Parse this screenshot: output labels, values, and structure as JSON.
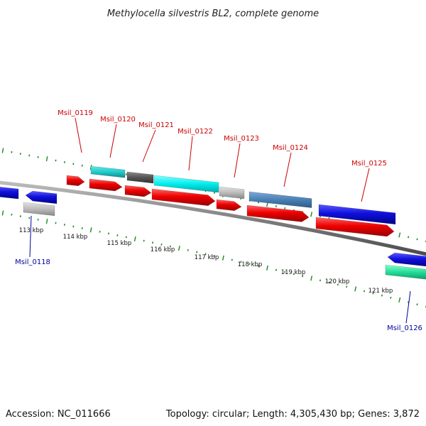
{
  "title": "Methylocella silvestris BL2, complete genome",
  "footer": {
    "accession": "Accession: NC_011666",
    "summary": "Topology: circular; Length: 4,305,430 bp; Genes: 3,872"
  },
  "colors": {
    "label_forward": "#cc0000",
    "label_reverse": "#00009a",
    "backbone": "#808080",
    "tick": "#1a8c1a",
    "cds_forward": "#ee0000",
    "cds_reverse": "#1010dd",
    "cyan": "#22cccc",
    "aqua": "#00eeee",
    "dark_gray": "#555555",
    "light_gray": "#bbbbbb",
    "steel_blue": "#4a7fb5",
    "sea_green": "#22dd99"
  },
  "scale_labels": [
    "113 kbp",
    "114 kbp",
    "115 kbp",
    "116 kbp",
    "117 kbp",
    "118 kbp",
    "119 kbp",
    "120 kbp",
    "121 kbp"
  ],
  "gene_labels": [
    {
      "name": "Msil_0119",
      "strand": "forward"
    },
    {
      "name": "Msil_0120",
      "strand": "forward"
    },
    {
      "name": "Msil_0121",
      "strand": "forward"
    },
    {
      "name": "Msil_0122",
      "strand": "forward"
    },
    {
      "name": "Msil_0123",
      "strand": "forward"
    },
    {
      "name": "Msil_0124",
      "strand": "forward"
    },
    {
      "name": "Msil_0125",
      "strand": "forward"
    },
    {
      "name": "Msil_0118",
      "strand": "reverse"
    },
    {
      "name": "Msil_0126",
      "strand": "reverse"
    }
  ]
}
